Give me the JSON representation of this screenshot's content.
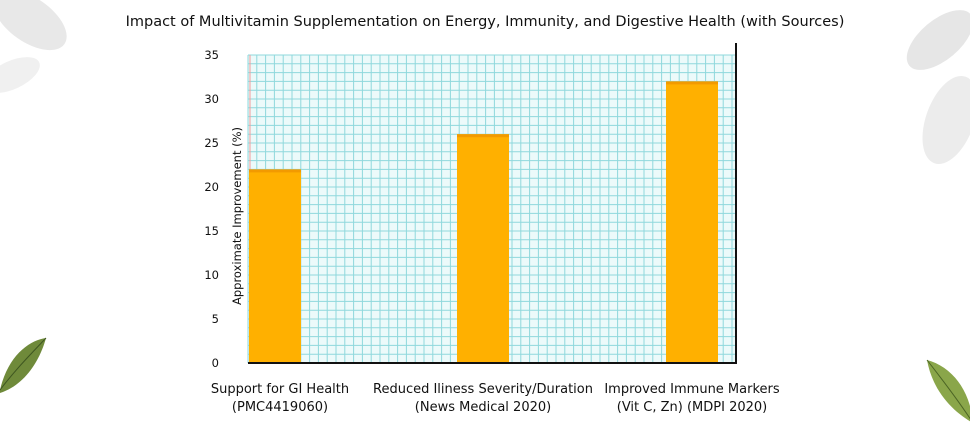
{
  "chart_data": {
    "type": "bar",
    "title": "Impact of Multivitamin Supplementation on Energy, Immunity, and Digestive Health (with Sources)",
    "ylabel": "Approximate Improvement (%)",
    "xlabel": "",
    "ylim": [
      0,
      35
    ],
    "yticks": [
      0,
      5,
      10,
      15,
      20,
      25,
      30,
      35
    ],
    "grid": true,
    "categories": [
      [
        "Support for GI Health",
        "(PMC4419060)"
      ],
      [
        "Reduced Iliness Severity/Duration",
        "(News Medical 2020)"
      ],
      [
        "Improved Immune Markers",
        "(Vit C, Zn) (MDPI 2020)"
      ]
    ],
    "values": [
      22,
      26,
      32
    ],
    "colors": {
      "bar": "#ffb000",
      "bar_edge": "#f29a00",
      "grid": "#8fd8dc",
      "axis": "#111111",
      "plot_bg": "#ecfafa"
    }
  }
}
